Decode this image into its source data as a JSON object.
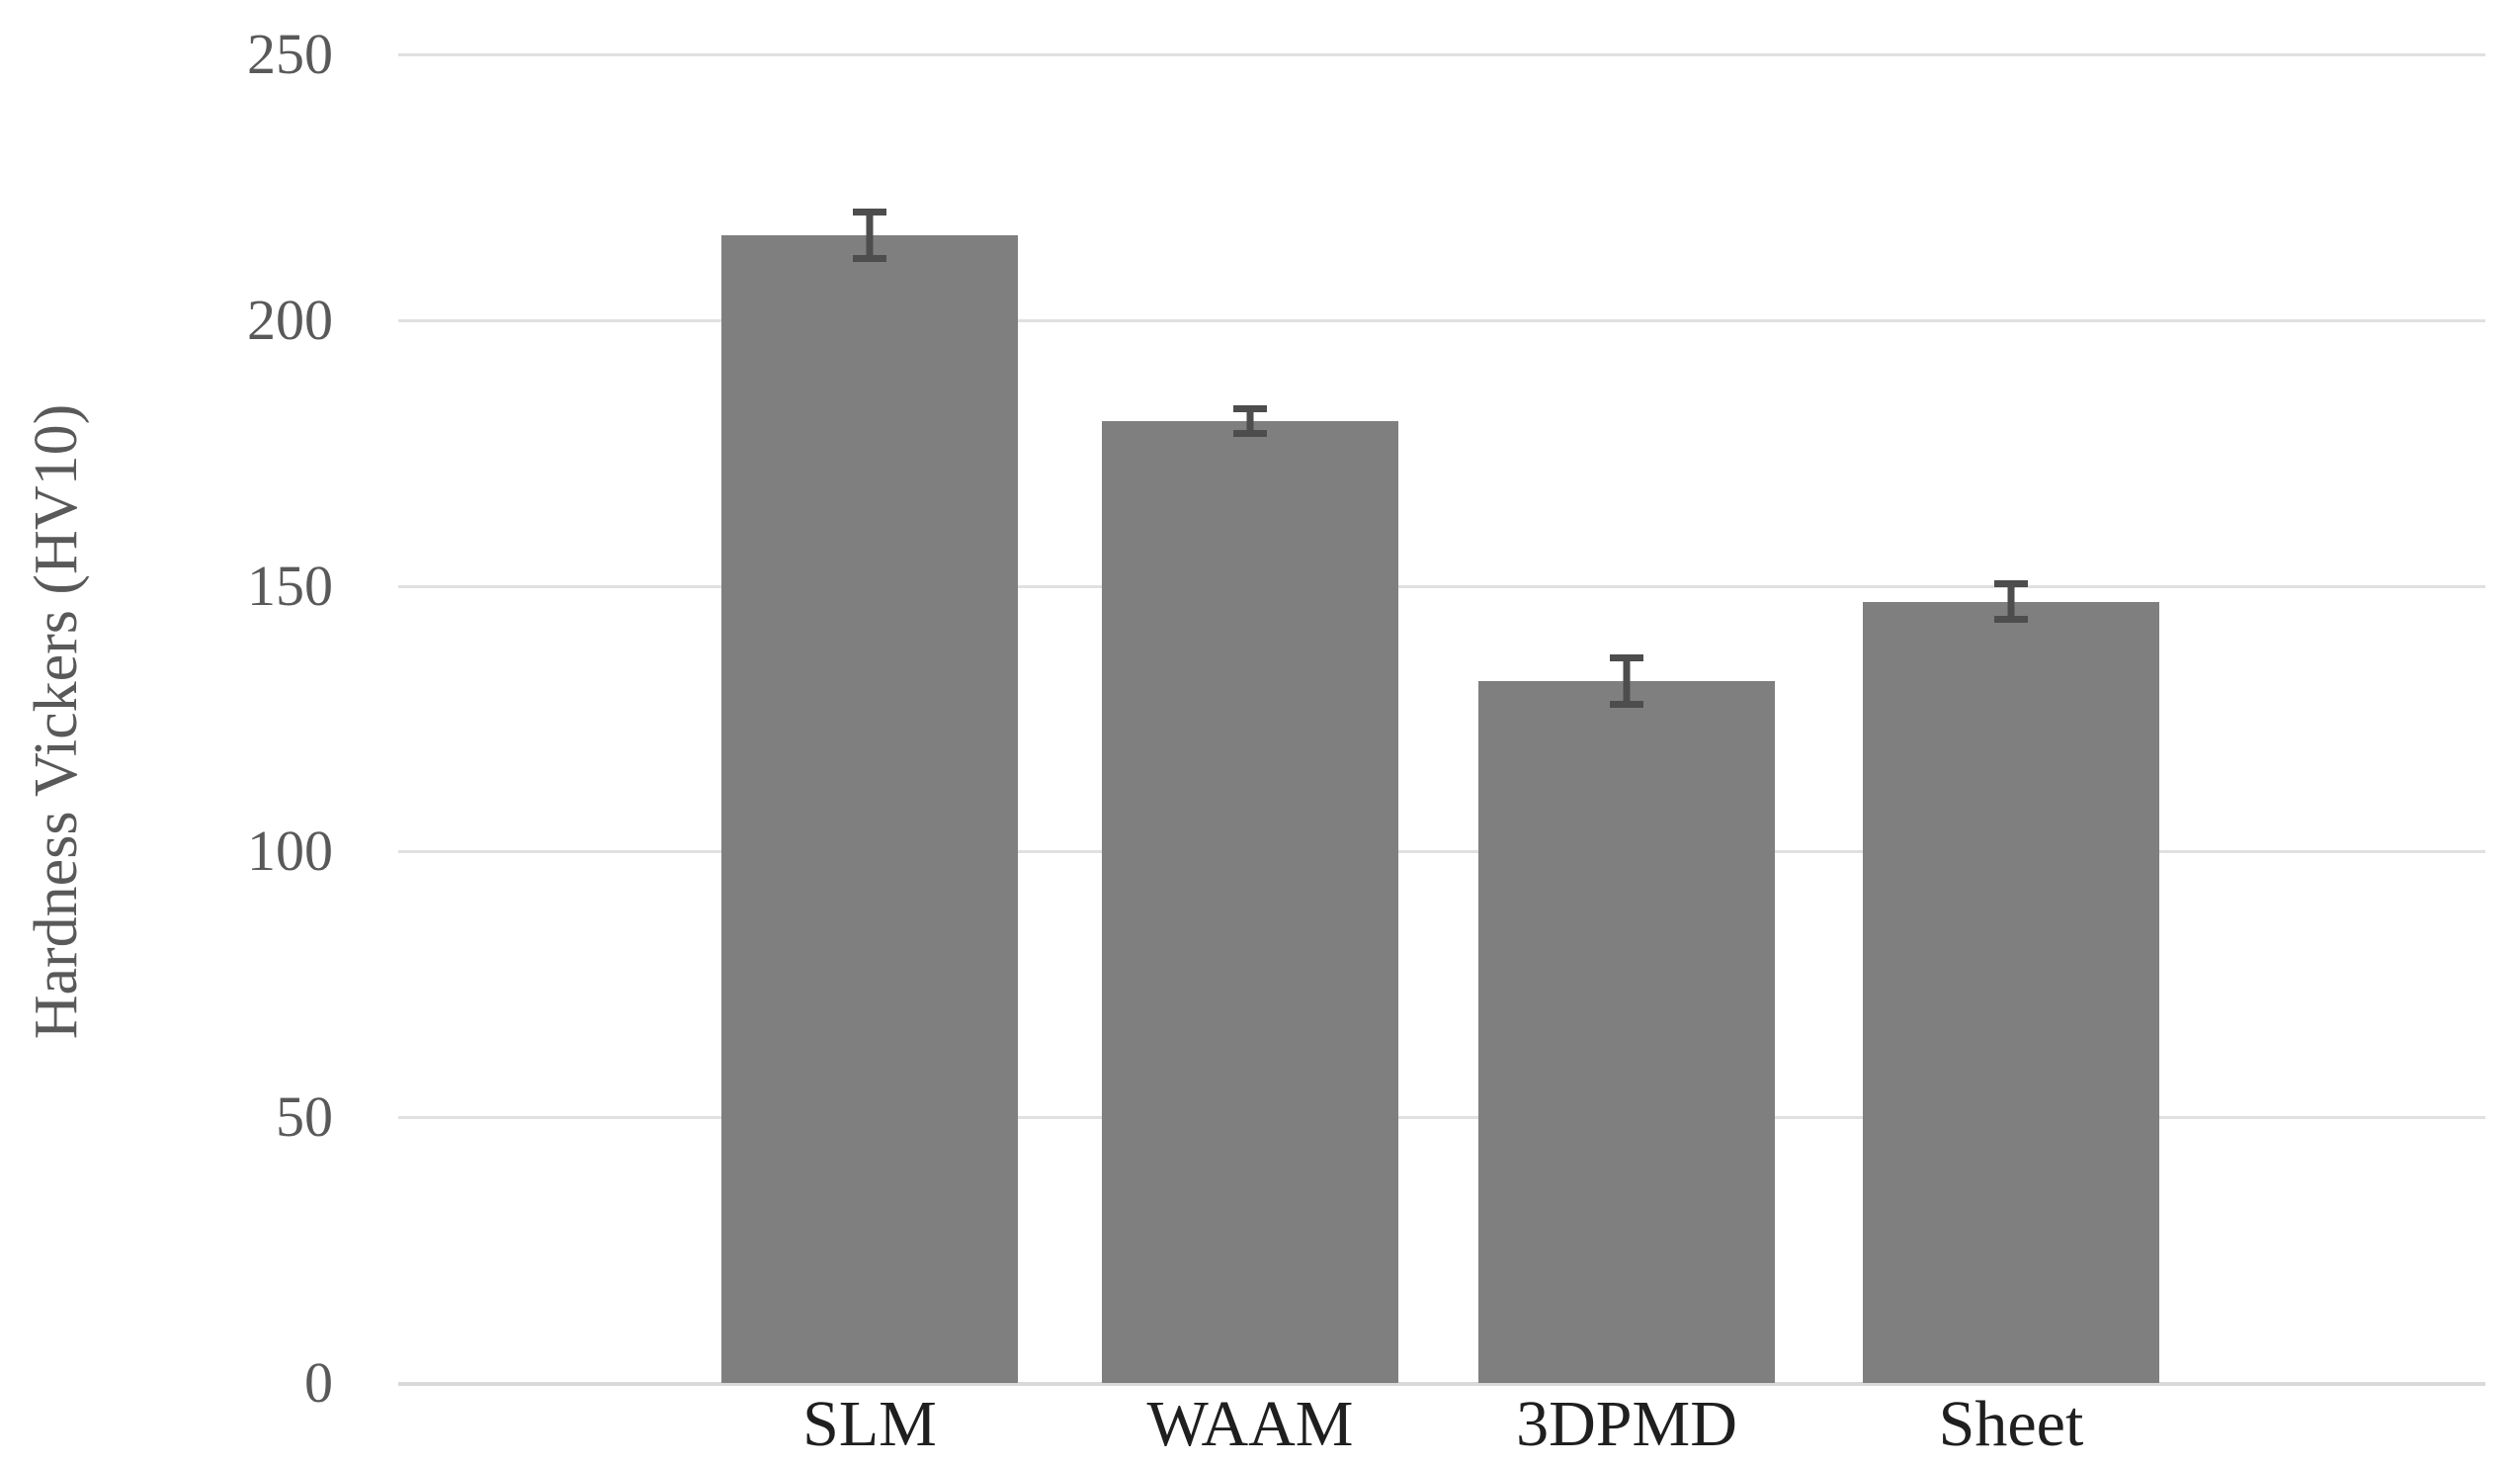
{
  "chart_data": {
    "type": "bar",
    "title": "",
    "categories": [
      "SLM",
      "WAAM",
      "3DPMD",
      "Sheet"
    ],
    "values": [
      216,
      181,
      132,
      147
    ],
    "error_bars": [
      5,
      3,
      5,
      4
    ],
    "ylabel": "Hardness Vickers (HV10)",
    "xlabel": "",
    "ylim": [
      0,
      250
    ],
    "ytick_interval": 50,
    "y_ticks": [
      "250",
      "200",
      "150",
      "100",
      "50",
      "0"
    ],
    "grid": "horizontal",
    "legend": "none",
    "colors": {
      "bar": "#7f7f7f",
      "error_bar": "#4d4d4d",
      "gridline": "#e0e0e0",
      "axis_line": "#d9d9d9",
      "y_tick_label": "#595959",
      "y_axis_title": "#595959",
      "category_label": "#1f1f1f",
      "background": "#ffffff"
    }
  }
}
